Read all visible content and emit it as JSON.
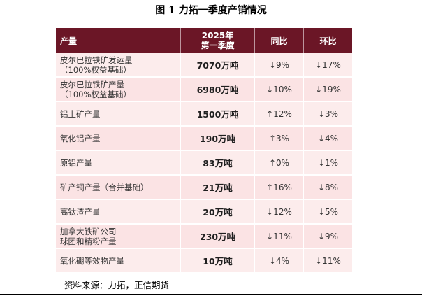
{
  "title": "图 1 力拓一季度产销情况",
  "table": {
    "headers": {
      "name": "产量",
      "value_line1": "2025年",
      "value_line2": "第一季度",
      "yoy": "同比",
      "qoq": "环比"
    },
    "rows": [
      {
        "name": "皮尔巴拉铁矿发运量\n（100%权益基础）",
        "value": "7070万吨",
        "yoy": "↓9%",
        "qoq": "↓17%"
      },
      {
        "name": "皮尔巴拉铁矿产量\n（100%权益基础）",
        "value": "6980万吨",
        "yoy": "↓10%",
        "qoq": "↓19%"
      },
      {
        "name": "铝土矿产量",
        "value": "1500万吨",
        "yoy": "↑12%",
        "qoq": "↓3%"
      },
      {
        "name": "氧化铝产量",
        "value": "190万吨",
        "yoy": "↑3%",
        "qoq": "↓4%"
      },
      {
        "name": "原铝产量",
        "value": "83万吨",
        "yoy": "↑0%",
        "qoq": "↓1%"
      },
      {
        "name": "矿产铜产量（合并基础）",
        "value": "21万吨",
        "yoy": "↑16%",
        "qoq": "↓8%"
      },
      {
        "name": "高钛渣产量",
        "value": "20万吨",
        "yoy": "↓12%",
        "qoq": "↓5%"
      },
      {
        "name": "加拿大铁矿公司\n球团和精粉产量",
        "value": "230万吨",
        "yoy": "↓11%",
        "qoq": "↓9%"
      },
      {
        "name": "氧化硼等效物产量",
        "value": "10万吨",
        "yoy": "↓4%",
        "qoq": "↓11%"
      }
    ]
  },
  "source": "资料来源：力拓，正信期货",
  "colors": {
    "header_bg": "#6b1626",
    "row_bg": "#fcecec"
  }
}
